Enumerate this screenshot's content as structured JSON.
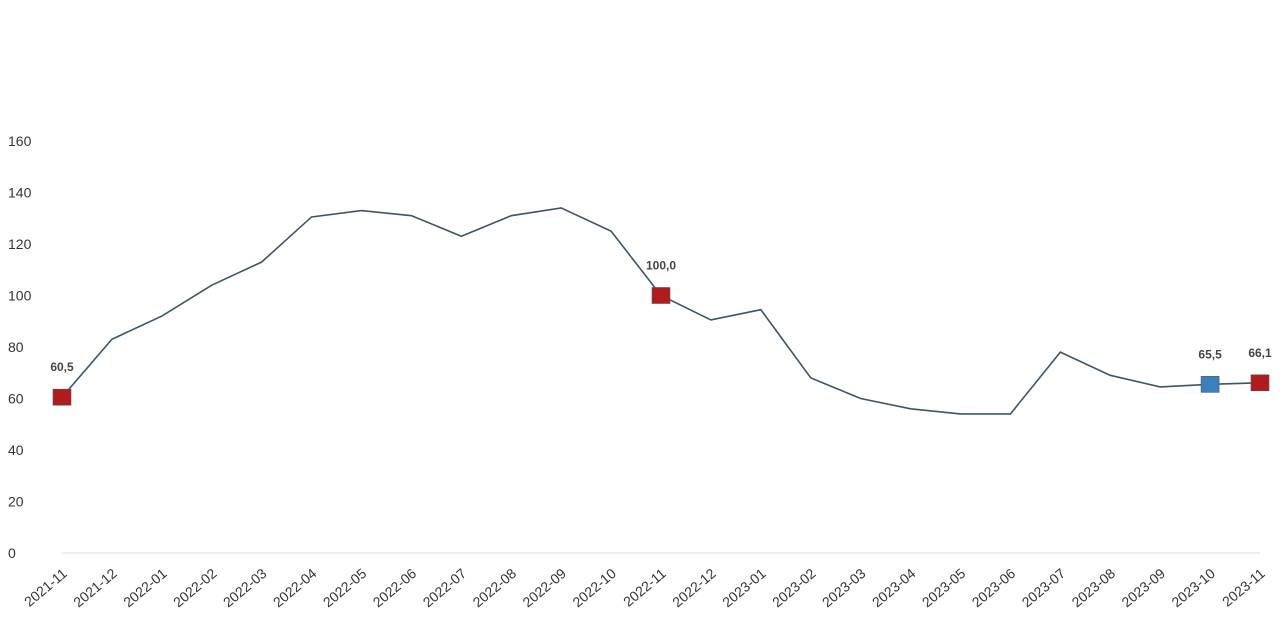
{
  "chart_data": {
    "type": "line",
    "categories": [
      "2021-11",
      "2021-12",
      "2022-01",
      "2022-02",
      "2022-03",
      "2022-04",
      "2022-05",
      "2022-06",
      "2022-07",
      "2022-08",
      "2022-09",
      "2022-10",
      "2022-11",
      "2022-12",
      "2023-01",
      "2023-02",
      "2023-03",
      "2023-04",
      "2023-05",
      "2023-06",
      "2023-07",
      "2023-08",
      "2023-09",
      "2023-10",
      "2023-11"
    ],
    "values": [
      60.5,
      83,
      92,
      104,
      113,
      130.5,
      133,
      131,
      123,
      131,
      134,
      125,
      100.0,
      90.5,
      94.5,
      68,
      60,
      56,
      54,
      54,
      78,
      69,
      64.5,
      65.5,
      66.1
    ],
    "value_labels": [
      "60,5",
      null,
      null,
      null,
      null,
      null,
      null,
      null,
      null,
      null,
      null,
      null,
      "100,0",
      null,
      null,
      null,
      null,
      null,
      null,
      null,
      null,
      null,
      null,
      "65,5",
      "66,1"
    ],
    "marker_colors": [
      "#b11b1b",
      null,
      null,
      null,
      null,
      null,
      null,
      null,
      null,
      null,
      null,
      null,
      "#b11b1b",
      null,
      null,
      null,
      null,
      null,
      null,
      null,
      null,
      null,
      null,
      "#3a7fc0",
      "#b11b1b"
    ],
    "color": "#3d5566",
    "ylim": [
      0,
      160
    ],
    "yticks": [
      0,
      20,
      40,
      60,
      80,
      100,
      120,
      140,
      160
    ]
  }
}
